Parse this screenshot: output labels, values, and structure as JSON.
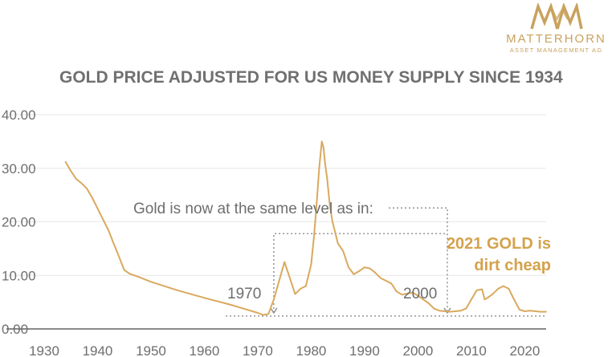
{
  "logo": {
    "icon": "mountain-mam-icon",
    "name": "MATTERHORN",
    "subtitle": "ASSET MANAGEMENT AG",
    "color": "#c9a25e"
  },
  "annotations": {
    "headline": "Gold is now at the same level as in:",
    "label_1970": "1970",
    "label_2000": "2000",
    "callout_line1": "2021 GOLD is",
    "callout_line2": "dirt cheap"
  },
  "colors": {
    "line": "#d9a95e",
    "callout": "#d4a24c",
    "title": "#707070",
    "axis_text": "#6e6e6e",
    "grid": "#e7e7e7",
    "dotted": "#8a8a8a"
  },
  "chart_data": {
    "type": "line",
    "title": "GOLD PRICE ADJUSTED FOR US MONEY SUPPLY SINCE 1934",
    "xlabel": "",
    "ylabel": "",
    "xlim": [
      1930,
      2024
    ],
    "ylim": [
      0,
      40
    ],
    "x_ticks": [
      1930,
      1940,
      1950,
      1960,
      1970,
      1980,
      1990,
      2000,
      2010,
      2020
    ],
    "y_ticks": [
      "0.00",
      "10.00",
      "20.00",
      "30.00",
      "40.00"
    ],
    "y_tick_values": [
      0,
      10,
      20,
      30,
      40
    ],
    "grid": true,
    "series": [
      {
        "name": "Gold price adjusted for US money supply",
        "x": [
          1934,
          1935,
          1936,
          1937,
          1938,
          1939,
          1940,
          1941,
          1942,
          1943,
          1944,
          1945,
          1946,
          1948,
          1950,
          1955,
          1960,
          1965,
          1970,
          1971,
          1972,
          1973,
          1974,
          1975,
          1976,
          1977,
          1978,
          1979,
          1980,
          1980.5,
          1981,
          1981.5,
          1982,
          1982.3,
          1982.6,
          1983,
          1983.5,
          1984,
          1984.5,
          1985,
          1986,
          1987,
          1988,
          1989,
          1990,
          1991,
          1992,
          1993,
          1994,
          1995,
          1996,
          1997,
          1998,
          1999,
          2000,
          2001,
          2002,
          2003,
          2004,
          2005,
          2006,
          2007,
          2008,
          2009,
          2010,
          2011,
          2012,
          2012.5,
          2013,
          2014,
          2015,
          2016,
          2017,
          2018,
          2019,
          2020,
          2021,
          2022,
          2023,
          2024
        ],
        "y": [
          31.2,
          29.5,
          28.0,
          27.2,
          26.2,
          24.5,
          22.5,
          20.5,
          18.5,
          16.0,
          13.5,
          11.0,
          10.3,
          9.6,
          8.8,
          7.2,
          5.8,
          4.5,
          3.0,
          2.6,
          2.8,
          5.5,
          9.0,
          12.5,
          9.5,
          6.5,
          7.5,
          8.0,
          12.0,
          17.0,
          23.0,
          30.0,
          35.0,
          34.0,
          31.0,
          28.0,
          23.0,
          20.0,
          18.0,
          16.0,
          14.5,
          11.5,
          10.2,
          10.8,
          11.5,
          11.3,
          10.5,
          9.5,
          9.0,
          8.5,
          7.0,
          6.4,
          6.6,
          6.8,
          6.2,
          5.5,
          4.8,
          3.8,
          3.4,
          3.3,
          3.2,
          3.3,
          3.4,
          3.8,
          5.5,
          7.2,
          7.4,
          5.5,
          5.8,
          6.5,
          7.5,
          8.0,
          7.5,
          5.5,
          3.6,
          3.3,
          3.4,
          3.3,
          3.2,
          3.2
        ]
      }
    ]
  }
}
